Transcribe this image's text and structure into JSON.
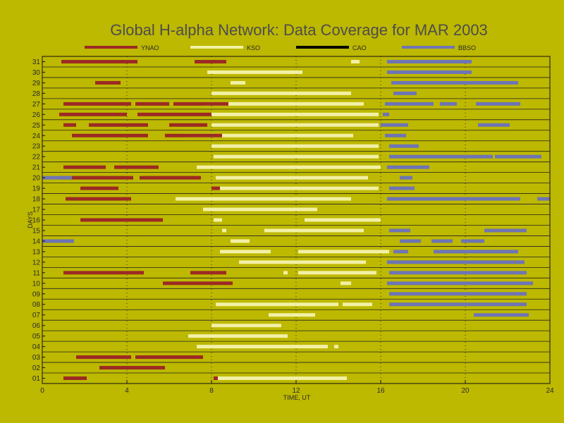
{
  "chart_data": {
    "type": "timeline",
    "title": "Global H-alpha Network: Data Coverage for MAR 2003",
    "xlabel": "TIME, UT",
    "ylabel": "DAYS",
    "xlim": [
      0,
      24
    ],
    "ylim": [
      1,
      31
    ],
    "x_ticks": [
      0,
      4,
      8,
      12,
      16,
      20,
      24
    ],
    "y_tick_labels": [
      "01",
      "02",
      "03",
      "04",
      "05",
      "06",
      "07",
      "08",
      "09",
      "10",
      "11",
      "12",
      "13",
      "14",
      "15",
      "16",
      "17",
      "18",
      "19",
      "20",
      "21",
      "22",
      "23",
      "24",
      "25",
      "26",
      "27",
      "28",
      "29",
      "30",
      "31"
    ],
    "grid": "dotted",
    "legend_position": "top",
    "stations": [
      {
        "name": "YNAO",
        "color": "#9C2A24"
      },
      {
        "name": "KSO",
        "color": "#F2F0A6"
      },
      {
        "name": "CAO",
        "color": "#000000"
      },
      {
        "name": "BBSO",
        "color": "#6E74B5"
      }
    ],
    "coverage": {
      "YNAO": {
        "31": [
          [
            0.9,
            4.5
          ],
          [
            7.2,
            8.7
          ]
        ],
        "29": [
          [
            2.5,
            3.7
          ]
        ],
        "27": [
          [
            1.0,
            4.2
          ],
          [
            4.4,
            6.0
          ],
          [
            6.2,
            8.8
          ]
        ],
        "26": [
          [
            0.8,
            4.0
          ],
          [
            4.5,
            8.0
          ]
        ],
        "25": [
          [
            1.0,
            1.6
          ],
          [
            2.2,
            5.0
          ],
          [
            6.0,
            7.8
          ]
        ],
        "24": [
          [
            1.4,
            5.0
          ],
          [
            5.8,
            8.5
          ]
        ],
        "21": [
          [
            1.0,
            3.0
          ],
          [
            3.4,
            5.5
          ]
        ],
        "20": [
          [
            0.8,
            4.3
          ],
          [
            4.6,
            7.5
          ]
        ],
        "19": [
          [
            1.8,
            3.6
          ],
          [
            8.0,
            8.4
          ]
        ],
        "18": [
          [
            1.1,
            4.2
          ]
        ],
        "16": [
          [
            1.8,
            5.7
          ]
        ],
        "11": [
          [
            1.0,
            4.8
          ],
          [
            7.0,
            8.7
          ]
        ],
        "10": [
          [
            5.7,
            9.0
          ]
        ],
        "03": [
          [
            1.6,
            4.2
          ],
          [
            4.4,
            7.6
          ]
        ],
        "02": [
          [
            2.7,
            5.8
          ]
        ],
        "01": [
          [
            1.0,
            2.1
          ],
          [
            8.1,
            8.3
          ]
        ]
      },
      "KSO": {
        "31": [
          [
            14.6,
            15.0
          ]
        ],
        "30": [
          [
            7.8,
            12.3
          ]
        ],
        "29": [
          [
            8.9,
            9.6
          ]
        ],
        "28": [
          [
            8.0,
            14.6
          ]
        ],
        "27": [
          [
            7.6,
            15.2
          ]
        ],
        "26": [
          [
            8.0,
            15.9
          ]
        ],
        "25": [
          [
            8.0,
            15.9
          ]
        ],
        "24": [
          [
            6.8,
            14.7
          ]
        ],
        "23": [
          [
            8.0,
            15.9
          ]
        ],
        "22": [
          [
            8.1,
            15.9
          ]
        ],
        "21": [
          [
            7.3,
            16.0
          ]
        ],
        "20": [
          [
            8.2,
            15.4
          ]
        ],
        "19": [
          [
            8.3,
            15.9
          ]
        ],
        "18": [
          [
            6.3,
            14.6
          ]
        ],
        "17": [
          [
            7.6,
            13.0
          ]
        ],
        "16": [
          [
            8.1,
            8.5
          ],
          [
            12.4,
            16.0
          ]
        ],
        "15": [
          [
            8.5,
            8.7
          ],
          [
            10.5,
            15.2
          ]
        ],
        "14": [
          [
            8.9,
            9.8
          ]
        ],
        "13": [
          [
            8.4,
            10.8
          ],
          [
            12.1,
            16.4
          ]
        ],
        "12": [
          [
            9.3,
            12.5
          ],
          [
            12.5,
            15.3
          ]
        ],
        "11": [
          [
            11.4,
            11.6
          ],
          [
            12.1,
            15.8
          ]
        ],
        "10": [
          [
            14.1,
            14.6
          ]
        ],
        "08": [
          [
            8.2,
            14.0
          ],
          [
            14.2,
            15.6
          ]
        ],
        "07": [
          [
            10.7,
            12.9
          ]
        ],
        "06": [
          [
            8.0,
            11.3
          ]
        ],
        "05": [
          [
            6.9,
            11.6
          ]
        ],
        "04": [
          [
            7.3,
            13.5
          ],
          [
            13.8,
            14.0
          ]
        ],
        "01": [
          [
            8.1,
            14.4
          ]
        ]
      },
      "CAO": {},
      "BBSO": {
        "31": [
          [
            16.6,
            17.3
          ],
          [
            16.3,
            20.3
          ]
        ],
        "30": [
          [
            16.3,
            20.3
          ]
        ],
        "29": [
          [
            16.5,
            22.5
          ]
        ],
        "28": [
          [
            16.6,
            17.7
          ]
        ],
        "27": [
          [
            16.2,
            18.5
          ],
          [
            18.8,
            19.6
          ],
          [
            20.5,
            22.6
          ]
        ],
        "26": [
          [
            16.1,
            16.4
          ]
        ],
        "25": [
          [
            16.0,
            17.3
          ],
          [
            20.6,
            22.1
          ]
        ],
        "24": [
          [
            16.2,
            17.2
          ]
        ],
        "23": [
          [
            16.4,
            17.8
          ]
        ],
        "22": [
          [
            16.4,
            21.3
          ],
          [
            21.4,
            23.6
          ]
        ],
        "21": [
          [
            16.3,
            18.3
          ]
        ],
        "20": [
          [
            16.9,
            17.5
          ]
        ],
        "19": [
          [
            16.4,
            17.6
          ]
        ],
        "18": [
          [
            16.3,
            22.6
          ],
          [
            23.4,
            24.0
          ]
        ],
        "15": [
          [
            16.4,
            17.4
          ],
          [
            20.9,
            22.9
          ]
        ],
        "14": [
          [
            16.9,
            17.9
          ],
          [
            18.4,
            19.4
          ],
          [
            19.8,
            20.9
          ]
        ],
        "13": [
          [
            16.6,
            17.3
          ],
          [
            18.5,
            22.5
          ]
        ],
        "12": [
          [
            16.3,
            22.8
          ]
        ],
        "11": [
          [
            16.4,
            22.9
          ]
        ],
        "10": [
          [
            16.3,
            23.2
          ]
        ],
        "09": [
          [
            16.4,
            22.9
          ]
        ],
        "08": [
          [
            16.4,
            22.9
          ]
        ],
        "07": [
          [
            20.4,
            23.0
          ]
        ],
        "20b": [
          [
            0.0,
            1.4
          ]
        ],
        "14b": [
          [
            0.0,
            1.5
          ]
        ]
      }
    }
  }
}
